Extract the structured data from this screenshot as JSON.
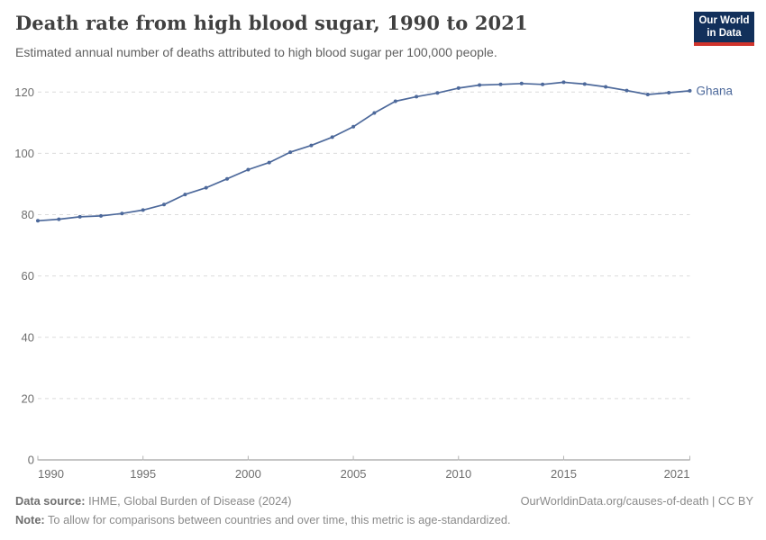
{
  "header": {
    "title": "Death rate from high blood sugar, 1990 to 2021",
    "subtitle": "Estimated annual number of deaths attributed to high blood sugar per 100,000 people.",
    "logo": {
      "line1": "Our World",
      "line2": "in Data",
      "bg_color": "#12305b",
      "accent_color": "#d0342c"
    }
  },
  "chart_data": {
    "type": "line",
    "title": "Death rate from high blood sugar, 1990 to 2021",
    "ylabel": "",
    "xlabel": "",
    "grid": "horizontal-dashed",
    "legend_position": "end-of-line-label",
    "xlim": [
      1990,
      2021
    ],
    "ylim": [
      0,
      130
    ],
    "xticks": [
      1990,
      1995,
      2000,
      2005,
      2010,
      2015,
      2021
    ],
    "yticks": [
      0,
      20,
      40,
      60,
      80,
      100,
      120
    ],
    "x": [
      1990,
      1991,
      1992,
      1993,
      1994,
      1995,
      1996,
      1997,
      1998,
      1999,
      2000,
      2001,
      2002,
      2003,
      2004,
      2005,
      2006,
      2007,
      2008,
      2009,
      2010,
      2011,
      2012,
      2013,
      2014,
      2015,
      2016,
      2017,
      2018,
      2019,
      2020,
      2021
    ],
    "series": [
      {
        "name": "Ghana",
        "color": "#4d699b",
        "values": [
          78.0,
          78.5,
          79.3,
          79.6,
          80.4,
          81.5,
          83.3,
          86.6,
          88.8,
          91.7,
          94.7,
          97.0,
          100.4,
          102.6,
          105.3,
          108.7,
          113.2,
          117.0,
          118.5,
          119.7,
          121.3,
          122.3,
          122.5,
          122.8,
          122.5,
          123.2,
          122.6,
          121.7,
          120.5,
          119.2,
          119.8,
          120.4
        ]
      }
    ],
    "end_label": "Ghana",
    "axis_color": "#8c8c8c",
    "gridline_color": "#dcdcdc",
    "tick_label_color": "#6e6e6e"
  },
  "footer": {
    "source_label": "Data source:",
    "source_text": " IHME, Global Burden of Disease (2024)",
    "license": "OurWorldinData.org/causes-of-death | CC BY",
    "note_label": "Note:",
    "note_text": " To allow for comparisons between countries and over time, this metric is age-standardized."
  }
}
